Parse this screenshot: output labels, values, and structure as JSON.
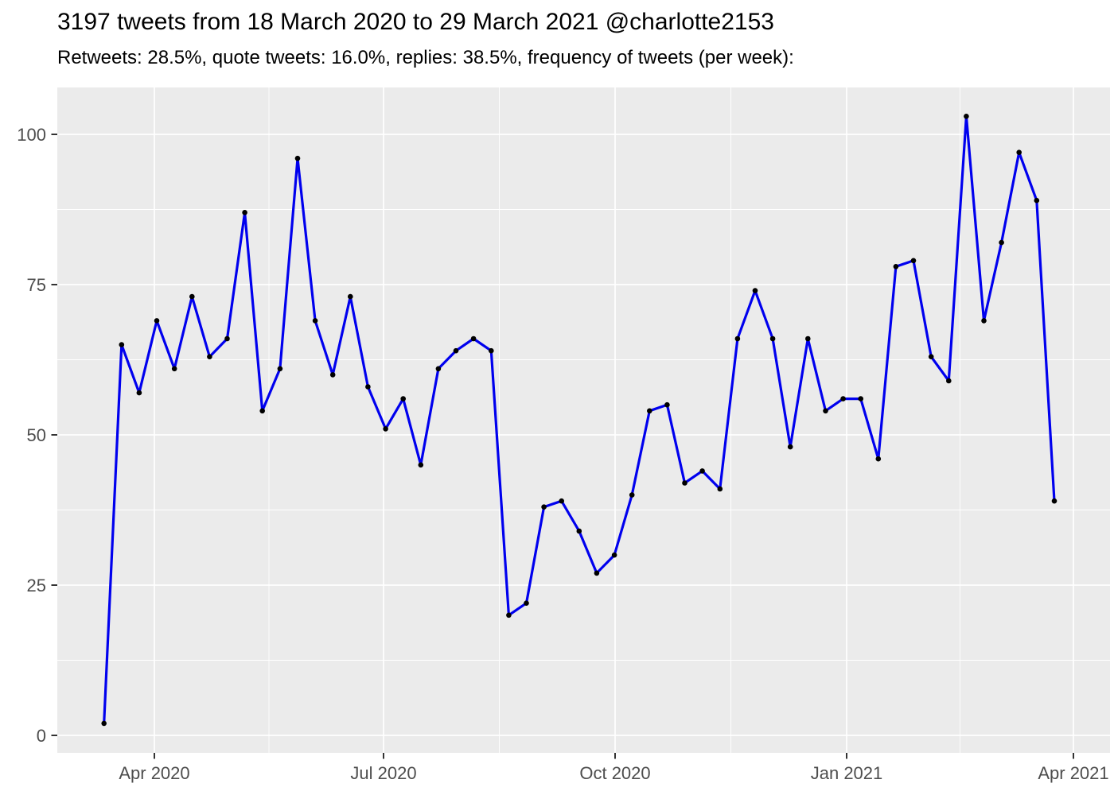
{
  "title": "3197 tweets from 18 March 2020 to 29 March 2021 @charlotte2153",
  "subtitle": "Retweets: 28.5%, quote tweets: 16.0%, replies: 38.5%, frequency of tweets (per week):",
  "stats": {
    "total_tweets": 3197,
    "retweets_pct": "28.5%",
    "quote_tweets_pct": "16.0%",
    "replies_pct": "38.5%",
    "account": "@charlotte2153",
    "date_range": "18 March 2020 to 29 March 2021"
  },
  "chart_data": {
    "type": "line",
    "series_name": "frequency of tweets (per week)",
    "x": [
      1,
      2,
      3,
      4,
      5,
      6,
      7,
      8,
      9,
      10,
      11,
      12,
      13,
      14,
      15,
      16,
      17,
      18,
      19,
      20,
      21,
      22,
      23,
      24,
      25,
      26,
      27,
      28,
      29,
      30,
      31,
      32,
      33,
      34,
      35,
      36,
      37,
      38,
      39,
      40,
      41,
      42,
      43,
      44,
      45,
      46,
      47,
      48,
      49,
      50,
      51,
      52,
      53,
      54,
      55
    ],
    "values": [
      2,
      65,
      57,
      69,
      61,
      73,
      63,
      66,
      87,
      54,
      61,
      96,
      69,
      60,
      73,
      58,
      51,
      56,
      45,
      61,
      64,
      66,
      64,
      20,
      22,
      38,
      39,
      34,
      27,
      30,
      40,
      54,
      55,
      42,
      44,
      41,
      66,
      74,
      66,
      48,
      66,
      54,
      56,
      56,
      46,
      78,
      79,
      63,
      59,
      103,
      69,
      82,
      97,
      89,
      39
    ],
    "xlabel": "",
    "ylabel": "",
    "y_ticks": [
      0,
      25,
      50,
      75,
      100
    ],
    "x_tick_labels": [
      "Apr 2020",
      "Jul 2020",
      "Oct 2020",
      "Jan 2021",
      "Apr 2021"
    ],
    "ylim": [
      -3,
      108
    ],
    "grid": true,
    "legend_position": "none",
    "colors": {
      "line": "#0000EE",
      "point": "#000000",
      "panel_background": "#EBEBEB",
      "gridline_major": "#FFFFFF",
      "gridline_minor": "#FFFFFF",
      "tick_mark": "#333333",
      "axis_text": "#4D4D4D",
      "title_text": "#000000",
      "background": "#FFFFFF"
    }
  }
}
